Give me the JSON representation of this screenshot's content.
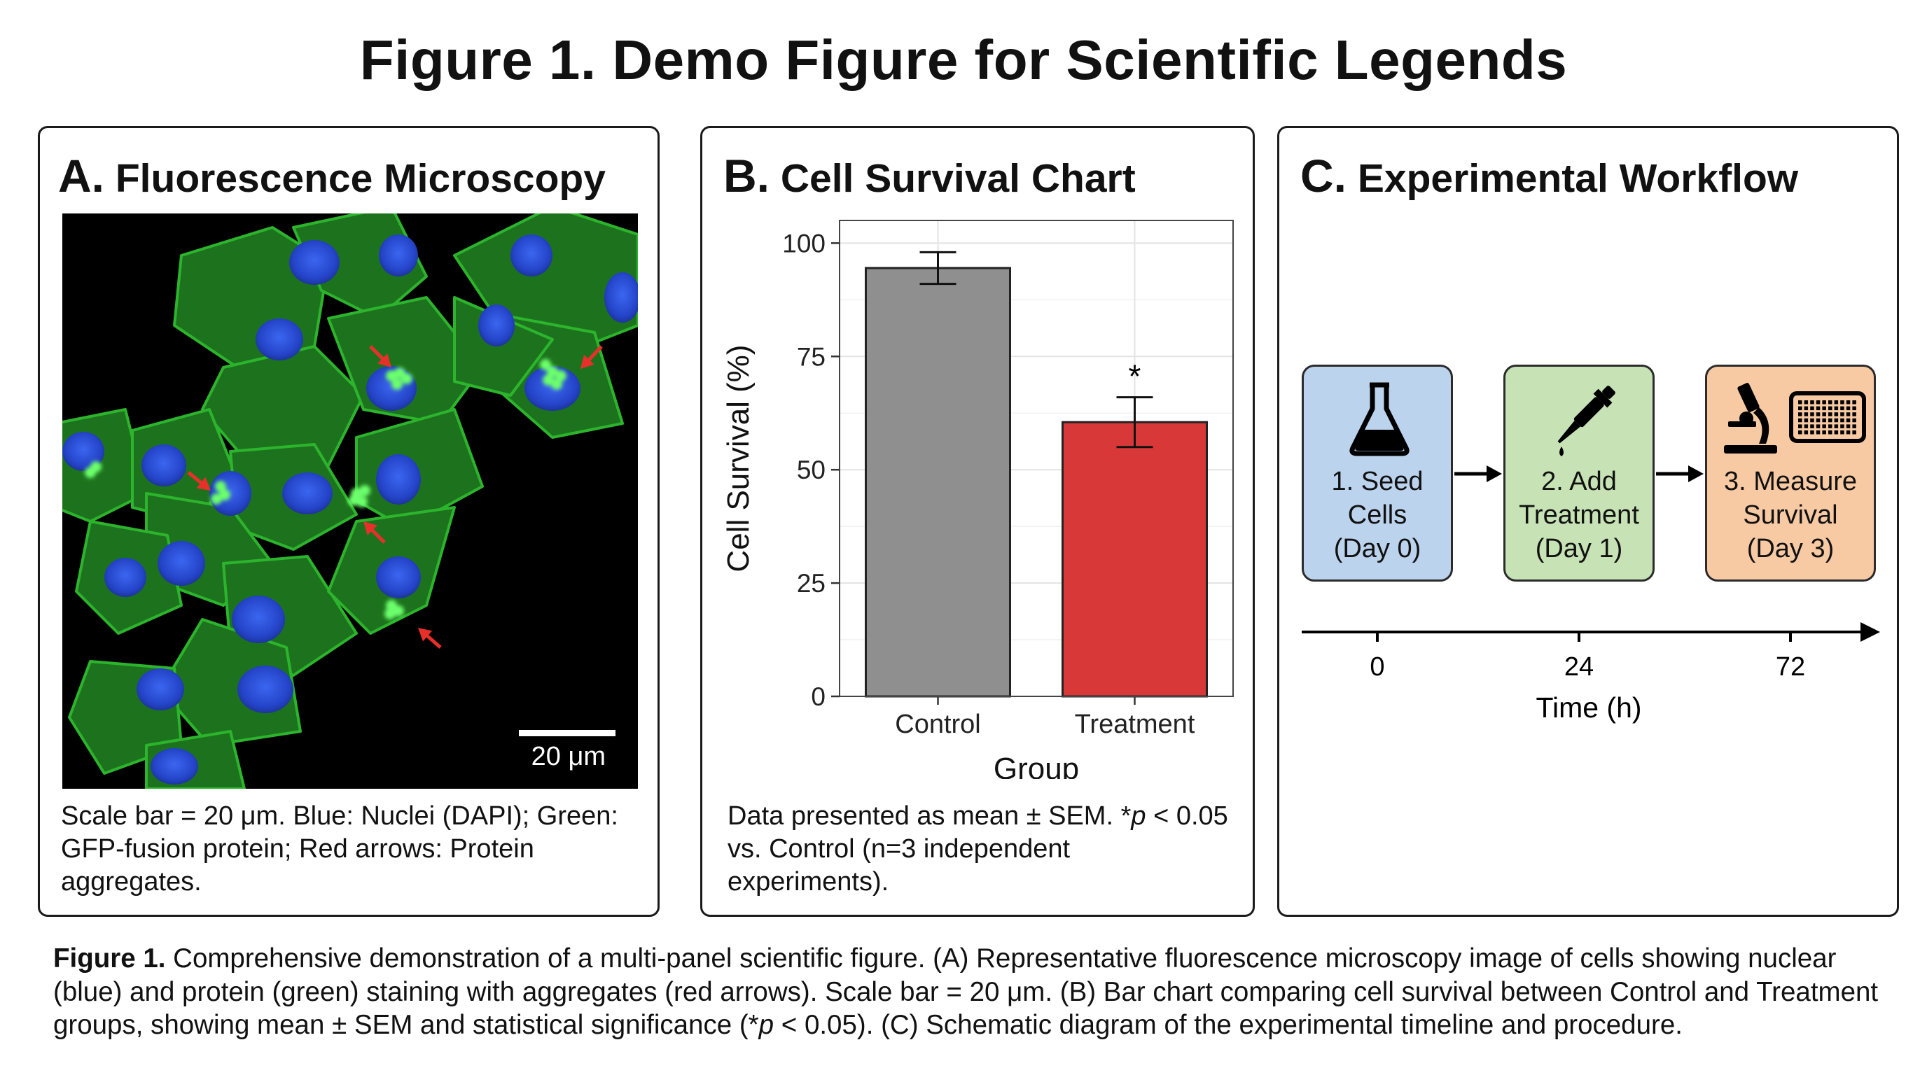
{
  "figure_title": "Figure 1. Demo Figure for Scientific Legends",
  "panel_a": {
    "letter": "A.",
    "title": "Fluorescence Microscopy",
    "scale_bar_label": "20 μm",
    "caption": "Scale bar = 20 μm. Blue: Nuclei (DAPI); Green: GFP-fusion protein; Red arrows: Protein aggregates.",
    "colors": {
      "background": "#000000",
      "nuclei": "#2a4fd6",
      "protein": "#2fbf2f",
      "arrow": "#e8302a"
    }
  },
  "panel_b": {
    "letter": "B.",
    "title": "Cell Survival Chart",
    "caption_before": "Data presented as mean ± SEM. *",
    "caption_p": "p",
    "caption_after": " < 0.05 vs. Control (n=3 independent experiments).",
    "chart_data": {
      "type": "bar",
      "categories": [
        "Control",
        "Treatment"
      ],
      "values": [
        94.5,
        60.5
      ],
      "errors": [
        3.5,
        5.5
      ],
      "significance": [
        "",
        "*"
      ],
      "colors": [
        "#8f8f8f",
        "#d93838"
      ],
      "xlabel": "Group",
      "ylabel": "Cell Survival (%)",
      "ylim": [
        0,
        100
      ],
      "yticks": [
        0,
        25,
        50,
        75,
        100
      ],
      "grid": true
    }
  },
  "panel_c": {
    "letter": "C.",
    "title": "Experimental Workflow",
    "steps": [
      {
        "line1": "1. Seed",
        "line2": "Cells",
        "line3": "(Day 0)",
        "icon": "flask-icon",
        "color": "#bcd3ee"
      },
      {
        "line1": "2. Add",
        "line2": "Treatment",
        "line3": "(Day 1)",
        "icon": "pipette-icon",
        "color": "#c7e3b5"
      },
      {
        "line1": "3. Measure",
        "line2": "Survival",
        "line3": "(Day 3)",
        "icon": "microscope-plate-icon",
        "color": "#f8caa3"
      }
    ],
    "timeline": {
      "ticks": [
        "0",
        "24",
        "72"
      ],
      "label": "Time (h)"
    }
  },
  "figure_caption": {
    "label": "Figure 1.",
    "text_1": " Comprehensive demonstration of a multi-panel scientific figure. (A) Representative fluorescence microscopy image of cells showing nuclear (blue) and protein (green) staining with aggregates (red arrows). Scale bar = 20 μm. (B) Bar chart comparing cell survival between Control and Treatment groups, showing mean ± SEM and statistical significance (*",
    "p": "p",
    "text_2": " < 0.05). (C) Schematic diagram of the experimental timeline and procedure."
  }
}
